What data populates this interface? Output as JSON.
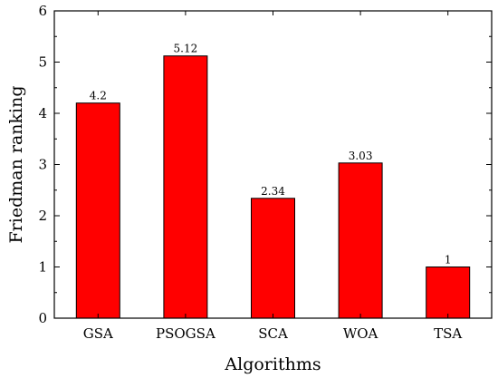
{
  "chart_data": {
    "type": "bar",
    "title": "",
    "xlabel": "Algorithms",
    "ylabel": "Friedman ranking",
    "categories": [
      "GSA",
      "PSOGSA",
      "SCA",
      "WOA",
      "TSA"
    ],
    "values": [
      4.2,
      5.12,
      2.34,
      3.03,
      1
    ],
    "value_labels": [
      "4.2",
      "5.12",
      "2.34",
      "3.03",
      "1"
    ],
    "ylim": [
      0,
      6
    ],
    "yticks": [
      "0",
      "1",
      "2",
      "3",
      "4",
      "5",
      "6"
    ],
    "grid": false,
    "legend": "none",
    "bar_color": "#ff0000",
    "bar_edge_color": "#000000"
  }
}
